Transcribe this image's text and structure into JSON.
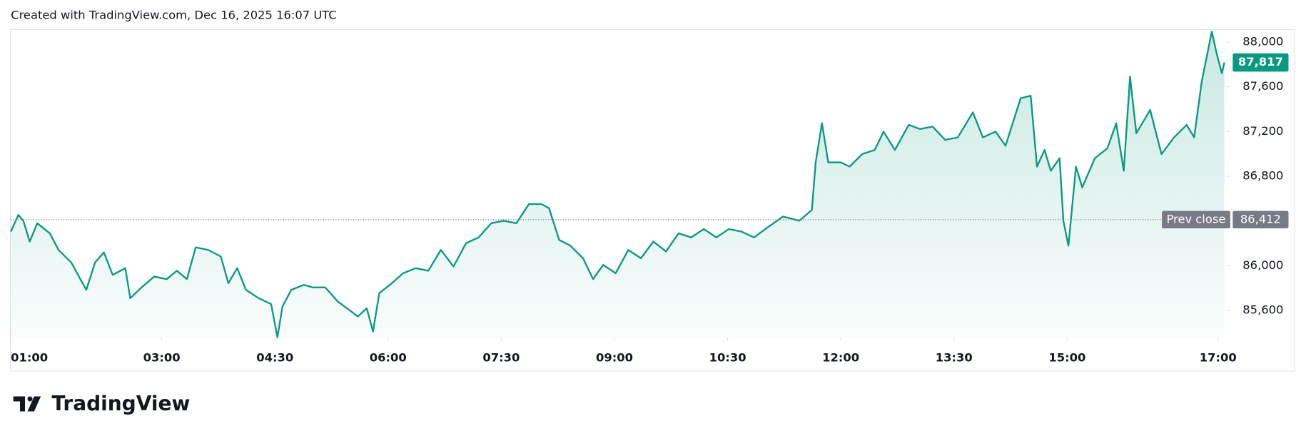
{
  "header": "Created with TradingView.com, Dec 16, 2025 16:07 UTC",
  "footer": "TradingView",
  "chart_data": {
    "type": "line",
    "x": [
      "01:00",
      "01:06",
      "01:10",
      "01:15",
      "01:21",
      "01:31",
      "01:38",
      "01:48",
      "02:00",
      "02:07",
      "02:14",
      "02:21",
      "02:31",
      "02:35",
      "02:44",
      "02:54",
      "03:04",
      "03:12",
      "03:20",
      "03:27",
      "03:37",
      "03:47",
      "03:53",
      "04:00",
      "04:07",
      "04:17",
      "04:27",
      "04:32",
      "04:36",
      "04:43",
      "04:53",
      "05:00",
      "05:10",
      "05:20",
      "05:29",
      "05:36",
      "05:43",
      "05:48",
      "05:53",
      "06:03",
      "06:12",
      "06:22",
      "06:32",
      "06:42",
      "06:52",
      "07:02",
      "07:12",
      "07:22",
      "07:32",
      "07:42",
      "07:52",
      "08:02",
      "08:08",
      "08:16",
      "08:25",
      "08:35",
      "08:43",
      "08:51",
      "09:01",
      "09:11",
      "09:21",
      "09:31",
      "09:41",
      "09:51",
      "10:01",
      "10:11",
      "10:21",
      "10:31",
      "10:41",
      "10:51",
      "11:00",
      "11:14",
      "11:27",
      "11:37",
      "11:40",
      "11:45",
      "11:50",
      "12:00",
      "12:07",
      "12:17",
      "12:27",
      "12:34",
      "12:43",
      "12:54",
      "13:03",
      "13:13",
      "13:23",
      "13:33",
      "13:45",
      "13:53",
      "14:03",
      "14:11",
      "14:23",
      "14:31",
      "14:36",
      "14:42",
      "14:47",
      "14:54",
      "14:57",
      "15:01",
      "15:07",
      "15:12",
      "15:22",
      "15:32",
      "15:39",
      "15:45",
      "15:50",
      "15:55",
      "16:06",
      "16:15",
      "16:25",
      "16:35",
      "16:41",
      "16:47",
      "16:55",
      "16:59",
      "17:03",
      "17:05"
    ],
    "series": [
      {
        "color": "#089981",
        "values": [
          86305,
          86454,
          86400,
          86216,
          86380,
          86290,
          86140,
          86030,
          85784,
          86030,
          86119,
          85918,
          85978,
          85710,
          85806,
          85903,
          85880,
          85955,
          85880,
          86164,
          86141,
          86082,
          85844,
          85978,
          85784,
          85710,
          85657,
          85360,
          85635,
          85784,
          85829,
          85806,
          85806,
          85680,
          85605,
          85546,
          85620,
          85412,
          85754,
          85844,
          85933,
          85978,
          85955,
          86141,
          85993,
          86201,
          86253,
          86380,
          86402,
          86380,
          86551,
          86551,
          86514,
          86231,
          86179,
          86067,
          85880,
          86007,
          85933,
          86141,
          86067,
          86216,
          86127,
          86290,
          86253,
          86328,
          86253,
          86328,
          86305,
          86253,
          86328,
          86440,
          86402,
          86499,
          86924,
          87274,
          86924,
          86924,
          86886,
          86998,
          87035,
          87199,
          87035,
          87259,
          87222,
          87244,
          87125,
          87147,
          87371,
          87147,
          87199,
          87073,
          87497,
          87520,
          86886,
          87035,
          86849,
          86961,
          86402,
          86179,
          86886,
          86700,
          86961,
          87050,
          87274,
          86849,
          87691,
          87184,
          87393,
          86998,
          87147,
          87259,
          87147,
          87646,
          88093,
          87892,
          87721,
          87817
        ]
      }
    ],
    "xlim": [
      "01:00",
      "17:07"
    ],
    "xticks": [
      "01:00",
      "03:00",
      "04:30",
      "06:00",
      "07:30",
      "09:00",
      "10:30",
      "12:00",
      "13:30",
      "15:00",
      "17:00"
    ],
    "ylim": [
      85360,
      88115
    ],
    "yticks": [
      {
        "value": 85600,
        "label": "85,600"
      },
      {
        "value": 86000,
        "label": "86,000"
      },
      {
        "value": 86800,
        "label": "86,800"
      },
      {
        "value": 87200,
        "label": "87,200"
      },
      {
        "value": 87600,
        "label": "87,600"
      },
      {
        "value": 88000,
        "label": "88,000"
      }
    ],
    "grid": false,
    "last_price": {
      "value": 87817,
      "label": "87,817"
    },
    "prev_close": {
      "name": "Prev close",
      "value": 86412,
      "label": "86,412",
      "color": "#787b86"
    }
  }
}
